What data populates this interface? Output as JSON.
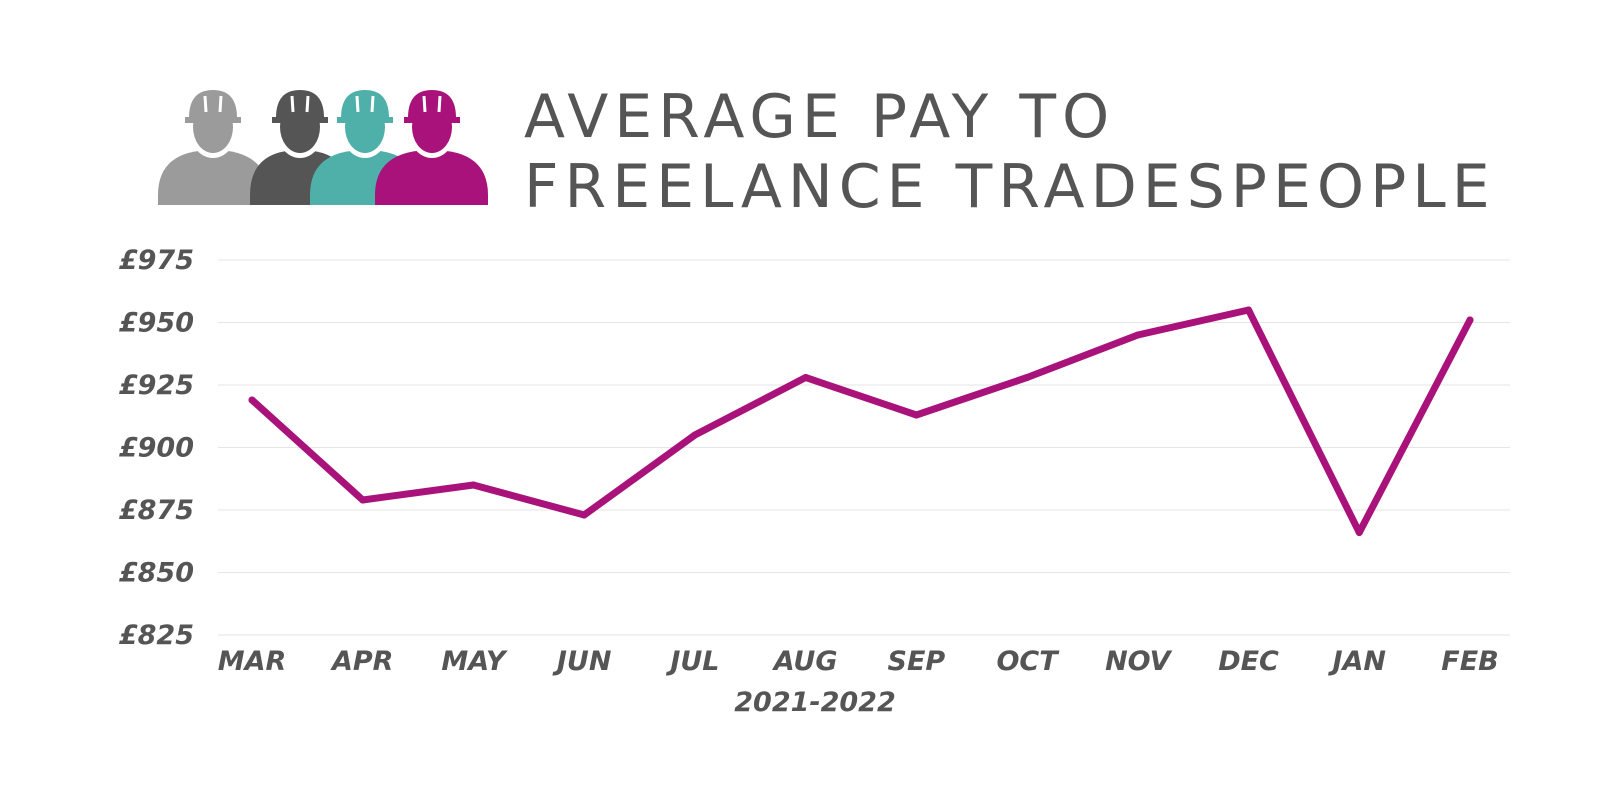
{
  "title_lines": [
    "AVERAGE PAY TO",
    "FREELANCE TRADESPEOPLE"
  ],
  "icons": [
    "worker-silhouette-gray-icon",
    "worker-silhouette-dark-gray-icon",
    "worker-silhouette-teal-icon",
    "worker-silhouette-magenta-icon"
  ],
  "colors": {
    "line": "#a8127a",
    "text": "#555555",
    "grid": "#e6e6e6",
    "worker_1": "#9b9b9b",
    "worker_2": "#555555",
    "worker_3": "#4fb0a9",
    "worker_4": "#a8127a"
  },
  "chart_data": {
    "type": "line",
    "title": "AVERAGE PAY TO FREELANCE TRADESPEOPLE",
    "xlabel": "2021-2022",
    "ylabel": "",
    "categories": [
      "MAR",
      "APR",
      "MAY",
      "JUN",
      "JUL",
      "AUG",
      "SEP",
      "OCT",
      "NOV",
      "DEC",
      "JAN",
      "FEB"
    ],
    "series": [
      {
        "values": [
          919,
          879,
          885,
          873,
          905,
          928,
          913,
          928,
          945,
          955,
          866,
          951
        ]
      }
    ],
    "ylim": [
      825,
      975
    ],
    "y_ticks": [
      975,
      950,
      925,
      900,
      875,
      850,
      825
    ],
    "y_tick_labels": [
      "£975",
      "£950",
      "£925",
      "£900",
      "£875",
      "£850",
      "£825"
    ],
    "grid": true,
    "legend": "none"
  }
}
